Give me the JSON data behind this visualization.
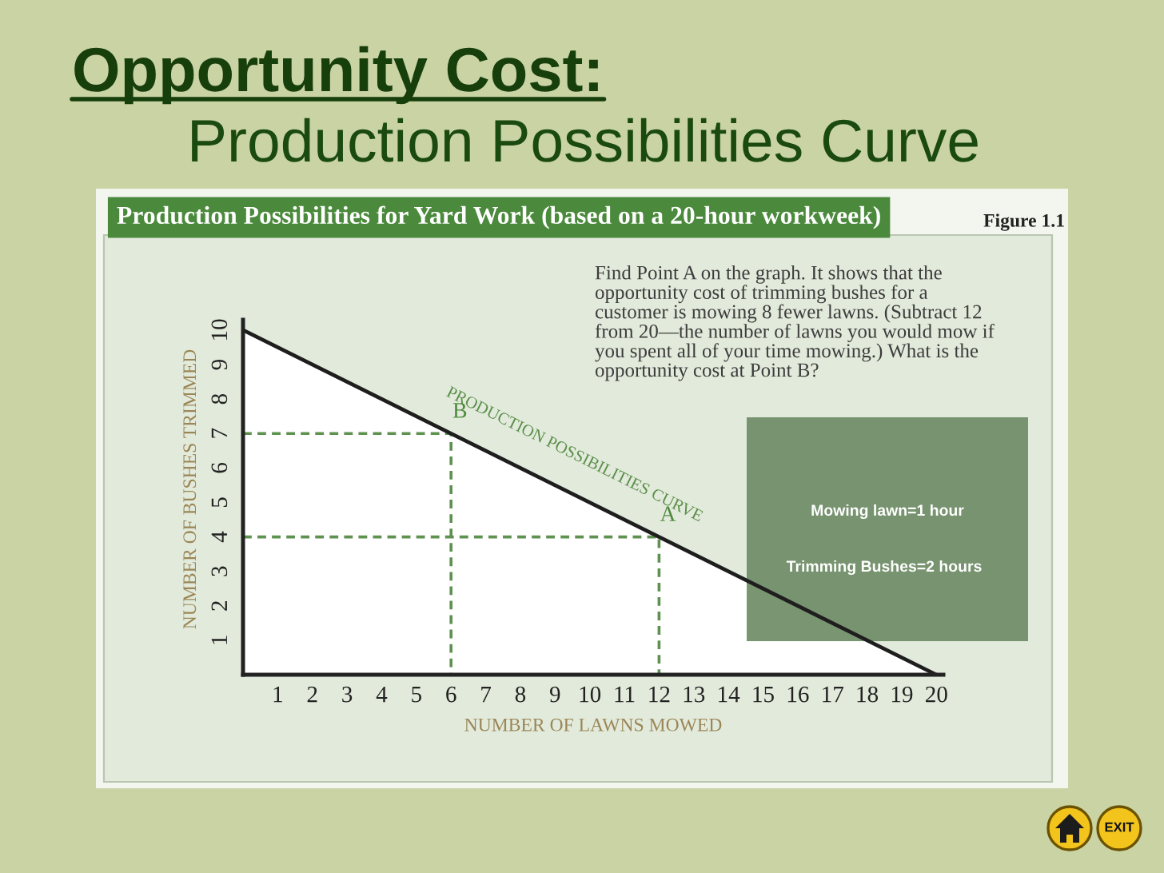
{
  "chart_data": {
    "type": "area",
    "title": "Opportunity Cost:",
    "subtitle": "Production Possibilities Curve",
    "xlabel": "NUMBER OF LAWNS MOWED",
    "ylabel": "NUMBER OF BUSHES TRIMMED",
    "xlim": [
      0,
      20.2
    ],
    "ylim": [
      0,
      10.3
    ],
    "xticks": [
      1,
      2,
      3,
      4,
      5,
      6,
      7,
      8,
      9,
      10,
      11,
      12,
      13,
      14,
      15,
      16,
      17,
      18,
      19,
      20
    ],
    "yticks": [
      1,
      2,
      3,
      4,
      5,
      6,
      7,
      8,
      9,
      10
    ],
    "series": [
      {
        "name": "PRODUCTION POSSIBILITIES CURVE",
        "color": "#ffffff",
        "x": [
          0,
          20
        ],
        "values": [
          10,
          0
        ]
      },
      {
        "type": "line",
        "line_style": "dashed",
        "color": "#5f9150",
        "x": [
          0,
          6,
          6
        ],
        "values": [
          7,
          7,
          0
        ]
      },
      {
        "type": "line",
        "line_style": "dashed",
        "color": "#5f9150",
        "x": [
          0,
          12,
          12
        ],
        "values": [
          4,
          4,
          0
        ]
      }
    ],
    "annotations": [
      {
        "text": "B",
        "x": 6,
        "y": 7
      },
      {
        "text": "A",
        "x": 12,
        "y": 4
      },
      "Production Possibilities for Yard Work (based on a 20-hour workweek)",
      "Figure 1.1",
      "Find Point A on the graph. It shows that the\nopportunity cost of trimming bushes for a\ncustomer is mowing 8 fewer lawns. (Subtract 12\nfrom 20—the number of lawns you would mow if\nyou spent all of your time mowing.) What is the\nopportunity cost at Point B?",
      "Mowing lawn=1 hour",
      "Trimming Bushes=2 hours",
      "EXIT"
    ]
  }
}
